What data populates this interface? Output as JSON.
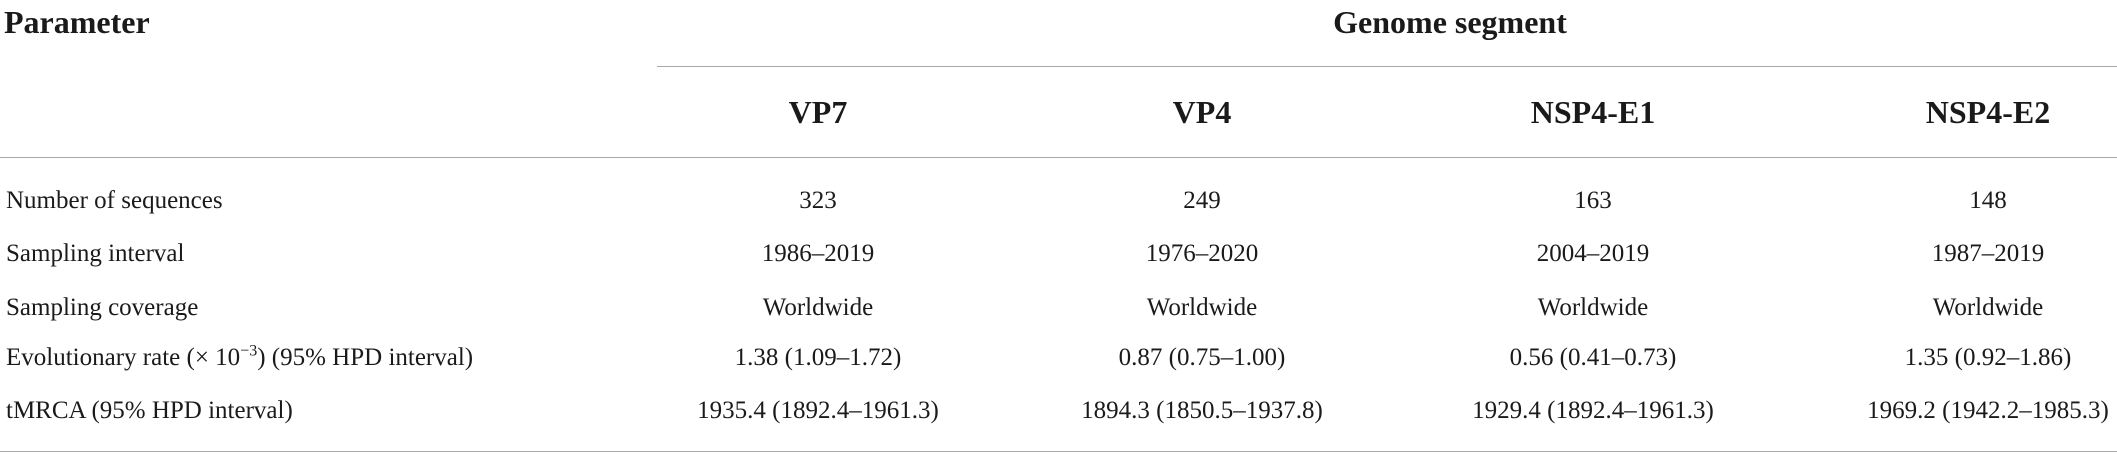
{
  "table": {
    "header": {
      "parameter_label": "Parameter",
      "group_label": "Genome segment",
      "columns": [
        "VP7",
        "VP4",
        "NSP4-E1",
        "NSP4-E2"
      ]
    },
    "rows": [
      {
        "label": "Number of sequences",
        "values": [
          "323",
          "249",
          "163",
          "148"
        ]
      },
      {
        "label": "Sampling interval",
        "values": [
          "1986–2019",
          "1976–2020",
          "2004–2019",
          "1987–2019"
        ]
      },
      {
        "label": "Sampling coverage",
        "values": [
          "Worldwide",
          "Worldwide",
          "Worldwide",
          "Worldwide"
        ]
      },
      {
        "label_prefix": "Evolutionary rate (× 10",
        "label_exponent": "−3",
        "label_suffix": ") (95% HPD interval)",
        "values": [
          "1.38 (1.09–1.72)",
          "0.87 (0.75–1.00)",
          "0.56 (0.41–0.73)",
          "1.35 (0.92–1.86)"
        ]
      },
      {
        "label": "tMRCA (95% HPD interval)",
        "values": [
          "1935.4 (1892.4–1961.3)",
          "1894.3 (1850.5–1937.8)",
          "1929.4 (1892.4–1961.3)",
          "1969.2 (1942.2–1985.3)"
        ]
      }
    ]
  }
}
